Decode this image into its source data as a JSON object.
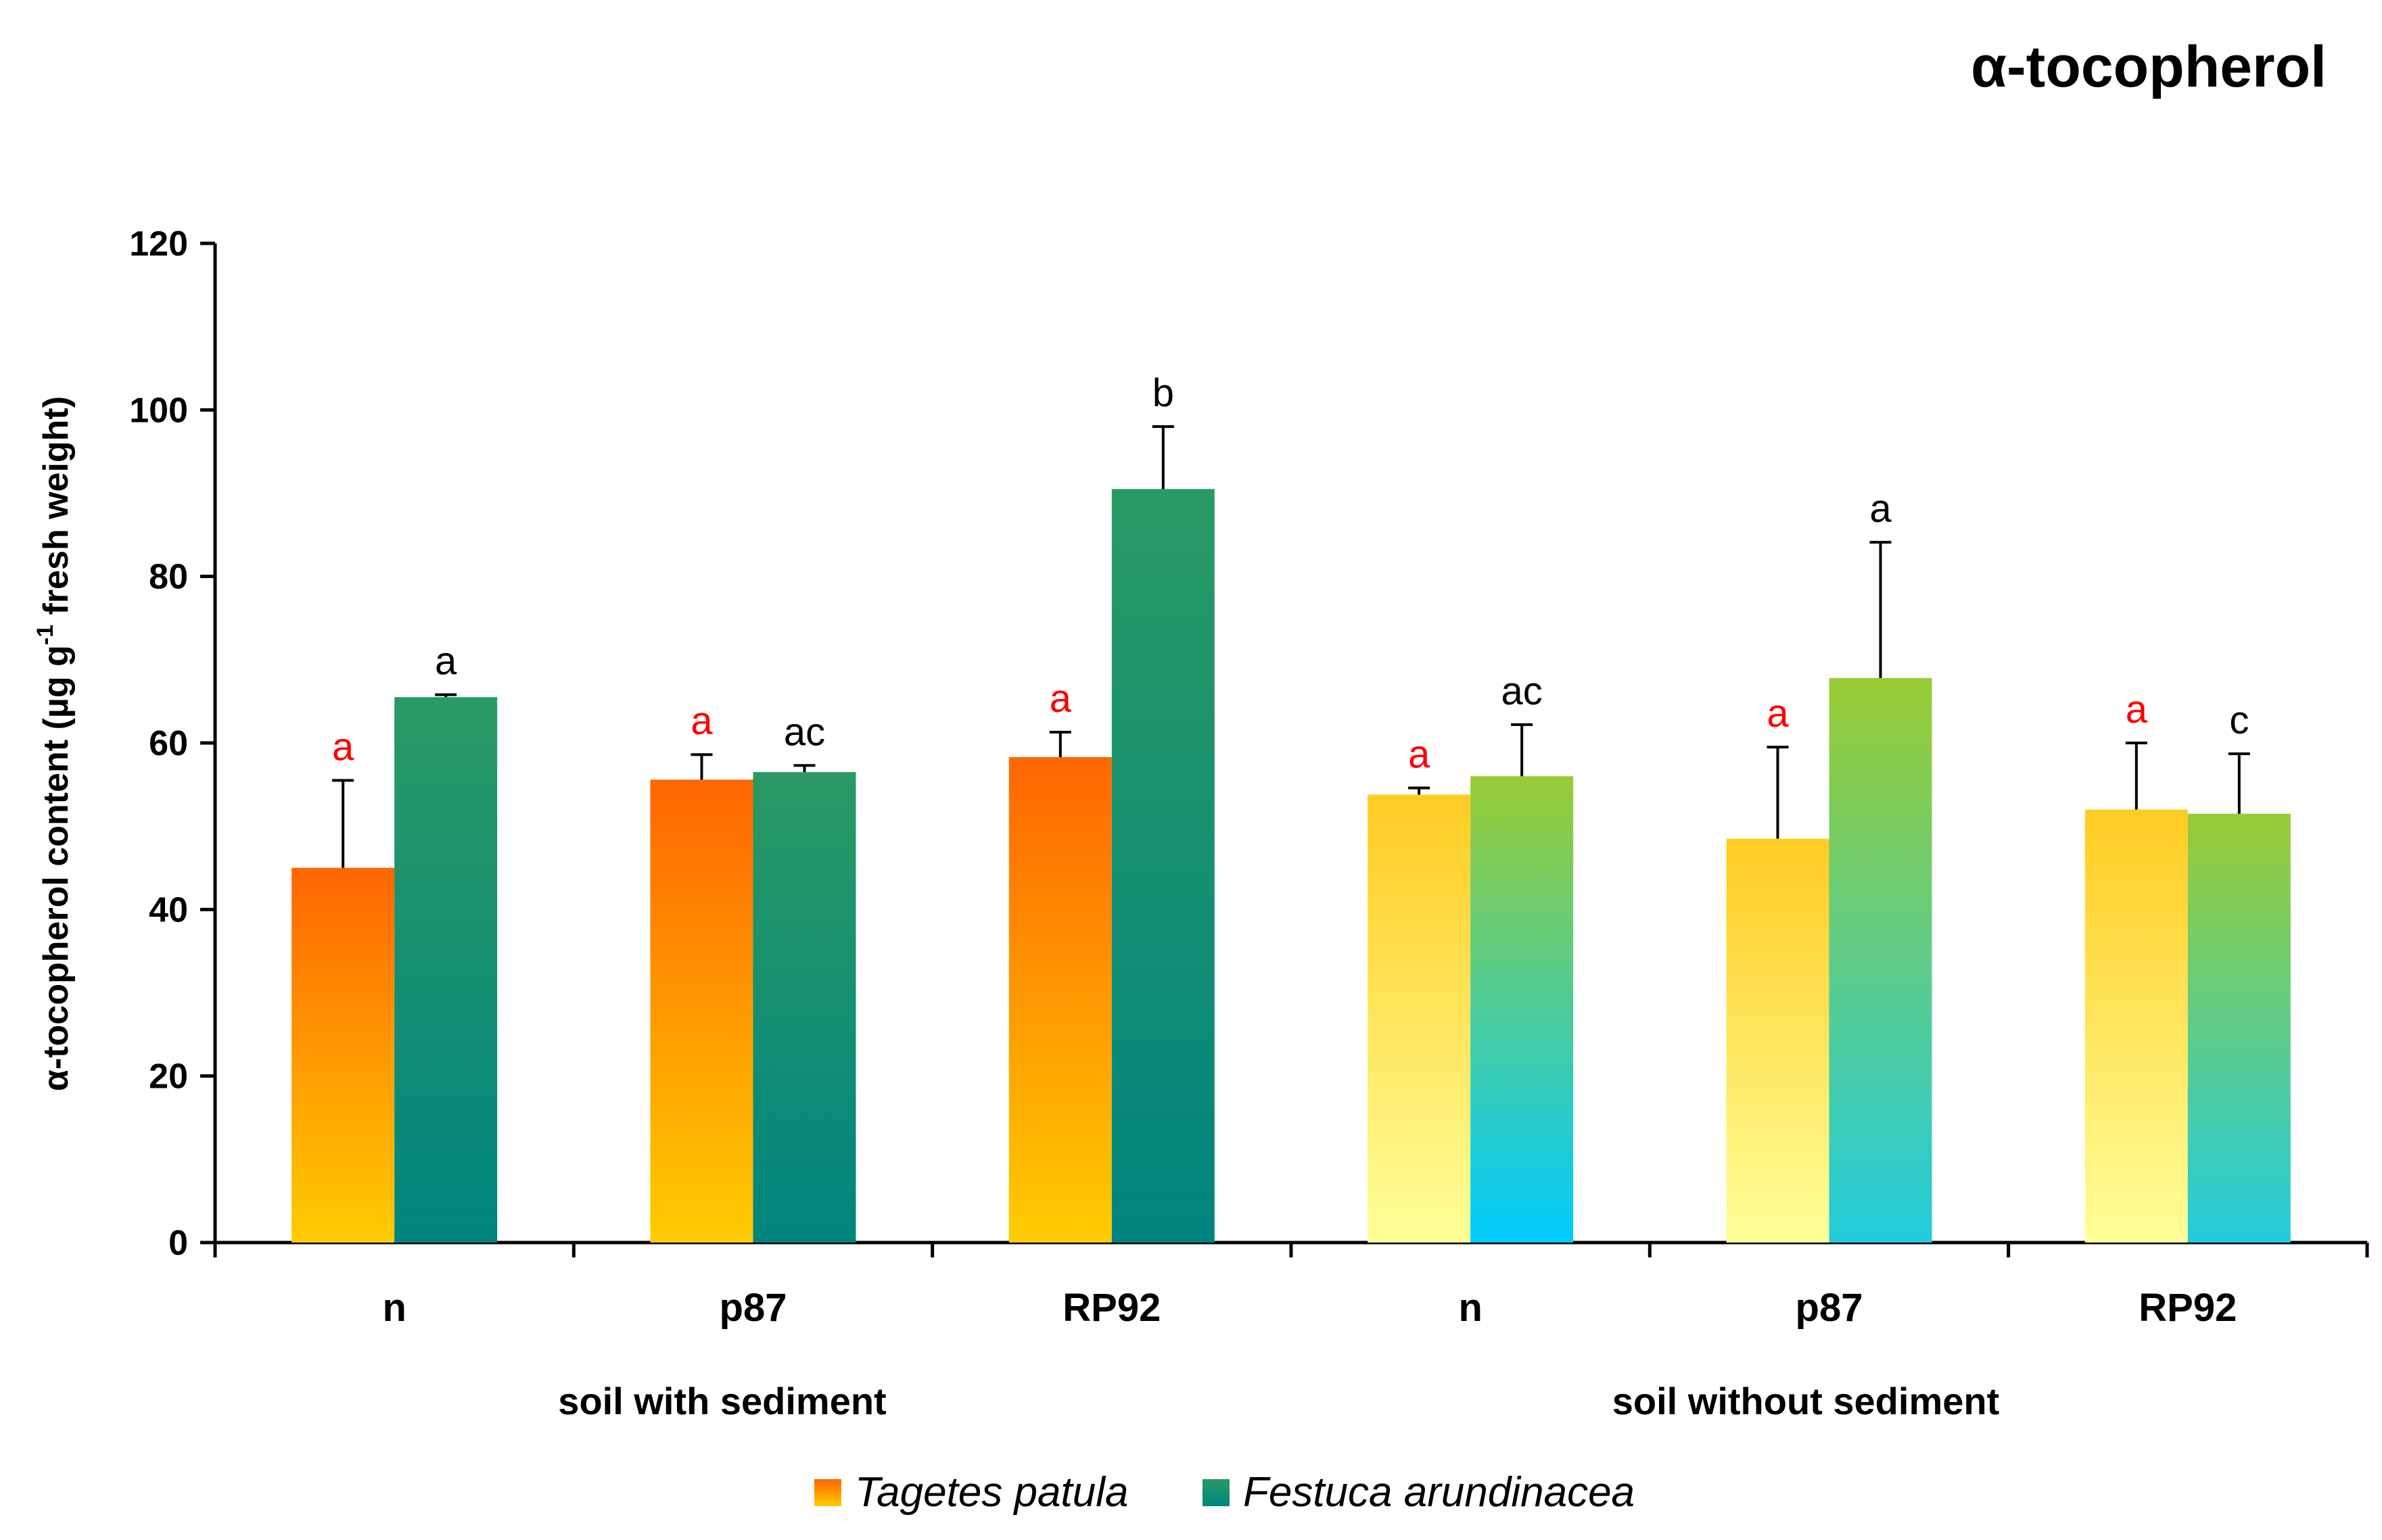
{
  "chart_data": {
    "type": "bar",
    "title": "α-tocopherol",
    "ylabel": "α-tocopherol content (µg  g",
    "ylabel_sup": "-1",
    "ylabel_tail": " fresh weight)",
    "ylim": [
      0,
      120
    ],
    "yticks": [
      0,
      20,
      40,
      60,
      80,
      100,
      120
    ],
    "groups": [
      {
        "label": "soil with sediment",
        "categories": [
          "n",
          "p87",
          "RP92"
        ]
      },
      {
        "label": "soil without sediment",
        "categories": [
          "n",
          "p87",
          "RP92"
        ]
      }
    ],
    "categories": [
      "n",
      "p87",
      "RP92",
      "n",
      "p87",
      "RP92"
    ],
    "series": [
      {
        "name": "Tagetes patula",
        "values": [
          45,
          55.6,
          58.3,
          53.8,
          48.5,
          52
        ],
        "errors": [
          10.5,
          3,
          3,
          0.8,
          11,
          8
        ],
        "letters": [
          "a",
          "a",
          "a",
          "a",
          "a",
          "a"
        ],
        "letter_color": "#ff0000"
      },
      {
        "name": "Festuca arundinacea",
        "values": [
          65.5,
          56.5,
          90.5,
          56,
          67.8,
          51.5
        ],
        "errors": [
          0.3,
          0.8,
          7.5,
          6.2,
          16.3,
          7.2
        ],
        "letters": [
          "a",
          "ac",
          "b",
          "ac",
          "a",
          "c"
        ],
        "letter_color": "#000000"
      }
    ],
    "legend": [
      "Tagetes patula",
      "Festuca arundinacea"
    ],
    "legend_position": "bottom-center",
    "colors": {
      "tagetes_with": [
        "#ff6600",
        "#ffcc00"
      ],
      "festuca_with": [
        "#2a9a64",
        "#00857e"
      ],
      "tagetes_without": [
        "#ffcc22",
        "#ffff99"
      ],
      "festuca_without": [
        "#99cc33",
        "#22ccdd"
      ],
      "festuca_without_n_bottom": "#00ccff"
    }
  }
}
